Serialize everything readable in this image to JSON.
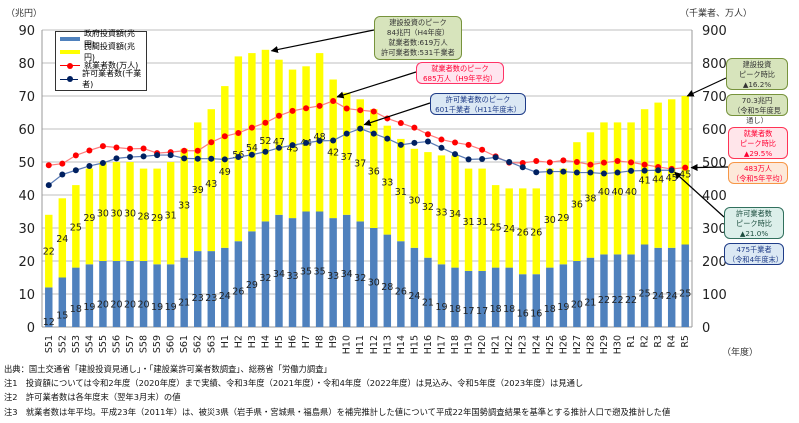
{
  "chart_data": {
    "type": "bar",
    "stacked": true,
    "title": "",
    "left_axis_unit": "（兆円）",
    "right_axis_unit": "（千業者、万人）",
    "x_axis_unit": "（年度）",
    "ylim": [
      0,
      90
    ],
    "y_ticks": [
      0,
      10,
      20,
      30,
      40,
      50,
      60,
      70,
      80,
      90
    ],
    "y2lim": [
      0,
      900
    ],
    "y2_ticks": [
      0,
      100,
      200,
      300,
      400,
      500,
      600,
      700,
      800,
      900
    ],
    "grid": true,
    "legend_position": "top-left",
    "categories": [
      "S51",
      "S52",
      "S53",
      "S54",
      "S55",
      "S56",
      "S57",
      "S58",
      "S59",
      "S60",
      "S61",
      "S62",
      "S63",
      "H1",
      "H2",
      "H3",
      "H4",
      "H5",
      "H6",
      "H7",
      "H8",
      "H9",
      "H10",
      "H11",
      "H12",
      "H13",
      "H14",
      "H15",
      "H16",
      "H17",
      "H18",
      "H19",
      "H20",
      "H21",
      "H22",
      "H23",
      "H24",
      "H25",
      "H26",
      "H27",
      "H28",
      "H29",
      "H30",
      "R1",
      "R2",
      "R3",
      "R4",
      "R5"
    ],
    "series": [
      {
        "name": "政府投資額(兆円)",
        "kind": "bar",
        "axis": "left",
        "color": "#4f81bd",
        "values": [
          12,
          15,
          18,
          19,
          20,
          20,
          20,
          20,
          19,
          19,
          21,
          23,
          23,
          24,
          26,
          29,
          32,
          34,
          33,
          35,
          35,
          33,
          34,
          32,
          30,
          28,
          26,
          24,
          21,
          19,
          18,
          17,
          17,
          18,
          18,
          16,
          16,
          18,
          19,
          20,
          21,
          22,
          22,
          22,
          25,
          24,
          24,
          25
        ]
      },
      {
        "name": "民間投資額(兆円)",
        "kind": "bar",
        "axis": "left",
        "color": "#ffff00",
        "values": [
          22,
          24,
          25,
          29,
          30,
          30,
          30,
          28,
          29,
          31,
          33,
          39,
          43,
          49,
          56,
          54,
          52,
          47,
          45,
          44,
          48,
          42,
          37,
          37,
          36,
          33,
          31,
          30,
          32,
          33,
          34,
          31,
          31,
          25,
          24,
          26,
          26,
          30,
          29,
          36,
          38,
          40,
          40,
          40,
          41,
          44,
          45,
          45
        ]
      },
      {
        "name": "就業者数(万人)",
        "kind": "line",
        "axis": "right",
        "color": "#ff0000",
        "values": [
          490,
          495,
          520,
          535,
          548,
          544,
          540,
          541,
          527,
          530,
          534,
          534,
          560,
          578,
          588,
          604,
          619,
          640,
          655,
          663,
          670,
          685,
          662,
          657,
          653,
          632,
          618,
          604,
          584,
          568,
          559,
          552,
          537,
          517,
          498,
          497,
          503,
          499,
          505,
          500,
          492,
          498,
          503,
          499,
          492,
          485,
          479,
          483
        ]
      },
      {
        "name": "許可業者数(千業者)",
        "kind": "line",
        "axis": "right",
        "color": "#002060",
        "values": [
          430,
          462,
          475,
          488,
          497,
          511,
          515,
          517,
          521,
          521,
          511,
          510,
          510,
          508,
          515,
          522,
          531,
          543,
          551,
          558,
          564,
          565,
          586,
          601,
          586,
          571,
          552,
          558,
          562,
          543,
          524,
          508,
          509,
          514,
          500,
          484,
          469,
          471,
          471,
          468,
          468,
          465,
          468,
          473,
          474,
          475,
          475,
          null
        ]
      }
    ],
    "annotations": [
      {
        "id": "investment-peak",
        "lines": [
          "建設投資のピーク",
          "84兆円（H4年度）",
          "就業者数:619万人",
          "許可業者数:531千業者"
        ],
        "bg": "#d7e4bc",
        "border": "#77933c",
        "color": "#333333"
      },
      {
        "id": "employment-peak",
        "lines": [
          "就業者数のピーク",
          "685万人（H9年平均）"
        ],
        "bg": "#ffe5ef",
        "border": "#ff3366",
        "color": "#ff0033"
      },
      {
        "id": "licensed-peak",
        "lines": [
          "許可業者数のピーク",
          "601千業者（H11年度末）"
        ],
        "bg": "#dbe8f4",
        "border": "#1f3c88",
        "color": "#1f3c88"
      },
      {
        "id": "investment-ratio",
        "lines": [
          "建設投資",
          "ピーク時比",
          "▲16.2%"
        ],
        "bg": "#d7e4bc",
        "border": "#77933c",
        "color": "#333333"
      },
      {
        "id": "investment-current",
        "lines": [
          "70.3兆円",
          "（令和5年度見通し）"
        ],
        "bg": "#d7e4bc",
        "border": "#77933c",
        "color": "#333333"
      },
      {
        "id": "employment-ratio",
        "lines": [
          "就業者数",
          "ピーク時比",
          "▲29.5%"
        ],
        "bg": "#ffe5ea",
        "border": "#ff3355",
        "color": "#ff0033"
      },
      {
        "id": "employment-current",
        "lines": [
          "483万人",
          "（令和5年平均）"
        ],
        "bg": "#fde9d9",
        "border": "#f79646",
        "color": "#ff0033"
      },
      {
        "id": "licensed-ratio",
        "lines": [
          "許可業者数",
          "ピーク時比",
          "▲21.0%"
        ],
        "bg": "#dcefea",
        "border": "#31705d",
        "color": "#1b4d3e"
      },
      {
        "id": "licensed-current",
        "lines": [
          "475千業者",
          "（令和4年度末）"
        ],
        "bg": "#dbe8f4",
        "border": "#1f3c88",
        "color": "#1f3c88"
      }
    ]
  },
  "notes": [
    "出典：国土交通省「建設投資見通し」・「建設業許可業者数調査」、総務省「労働力調査」",
    "注1　投資額については令和2年度（2020年度）まで実績、令和3年度（2021年度）・令和4年度（2022年度）は見込み、令和5年度（2023年度）は見通し",
    "注2　許可業者数は各年度末（翌年3月末）の値",
    "注3　就業者数は年平均。平成23年（2011年）は、被災3県（岩手県・宮城県・福島県）を補完推計した値について平成22年国勢調査結果を基準とする推計人口で遡及推計した値"
  ]
}
